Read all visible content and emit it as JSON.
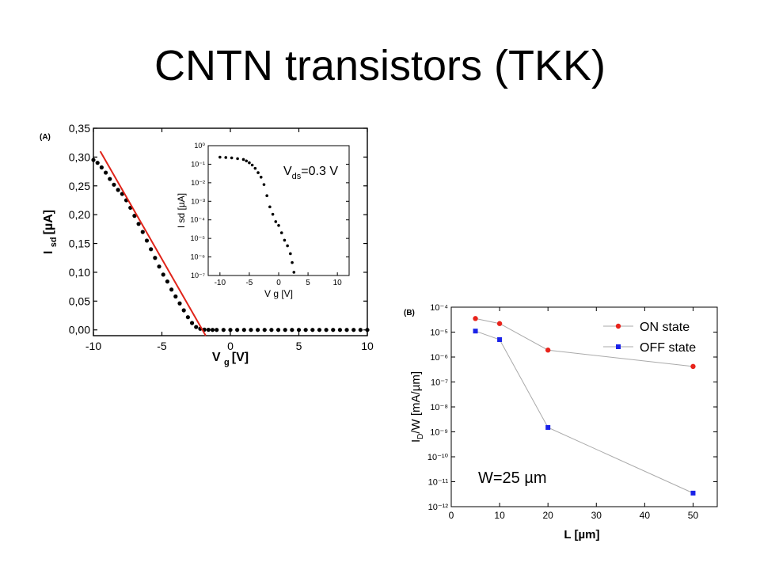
{
  "slide": {
    "title": "CNTN transistors (TKK)"
  },
  "chart_data": [
    {
      "type": "scatter",
      "panel_label": "(A)",
      "xlabel": "V g [V]",
      "xlabel_main": "V",
      "xlabel_sub": "g",
      "xlabel_unit": "[V]",
      "ylabel": "I sd [µA]",
      "ylabel_main": "I",
      "ylabel_sub": "sd",
      "ylabel_unit": "[µA]",
      "xlim": [
        -10,
        10
      ],
      "ylim": [
        -0.01,
        0.35
      ],
      "x_ticks": [
        "-10",
        "-5",
        "0",
        "5",
        "10"
      ],
      "y_ticks": [
        "0,00",
        "0,05",
        "0,10",
        "0,15",
        "0,20",
        "0,25",
        "0,30",
        "0,35"
      ],
      "grid": false,
      "series": [
        {
          "color": "#000000",
          "points": [
            [
              -10,
              0.295
            ],
            [
              -9.7,
              0.29
            ],
            [
              -9.4,
              0.282
            ],
            [
              -9.1,
              0.273
            ],
            [
              -8.8,
              0.262
            ],
            [
              -8.5,
              0.252
            ],
            [
              -8.2,
              0.243
            ],
            [
              -7.9,
              0.236
            ],
            [
              -7.6,
              0.225
            ],
            [
              -7.3,
              0.212
            ],
            [
              -7.0,
              0.198
            ],
            [
              -6.7,
              0.184
            ],
            [
              -6.4,
              0.17
            ],
            [
              -6.1,
              0.155
            ],
            [
              -5.8,
              0.14
            ],
            [
              -5.5,
              0.125
            ],
            [
              -5.2,
              0.11
            ],
            [
              -4.9,
              0.096
            ],
            [
              -4.6,
              0.084
            ],
            [
              -4.3,
              0.07
            ],
            [
              -4.0,
              0.058
            ],
            [
              -3.7,
              0.046
            ],
            [
              -3.4,
              0.034
            ],
            [
              -3.1,
              0.022
            ],
            [
              -2.8,
              0.012
            ],
            [
              -2.5,
              0.005
            ],
            [
              -2.2,
              0.002
            ],
            [
              -1.9,
              0.0005
            ],
            [
              -1.6,
              0.0002
            ],
            [
              -1.3,
              0.0
            ],
            [
              -1.0,
              0.0
            ],
            [
              -0.5,
              0.0
            ],
            [
              0,
              0.0
            ],
            [
              0.5,
              0.0
            ],
            [
              1,
              0.0
            ],
            [
              1.5,
              0.0
            ],
            [
              2,
              0.0
            ],
            [
              2.5,
              0.0
            ],
            [
              3,
              0.0
            ],
            [
              3.5,
              0.0
            ],
            [
              4,
              0.0
            ],
            [
              4.5,
              0.0
            ],
            [
              5,
              0.0
            ],
            [
              5.5,
              0.0
            ],
            [
              6,
              0.0
            ],
            [
              6.5,
              0.0
            ],
            [
              7,
              0.0
            ],
            [
              7.5,
              0.0
            ],
            [
              8,
              0.0
            ],
            [
              8.5,
              0.0
            ],
            [
              9,
              0.0
            ],
            [
              9.5,
              0.0
            ],
            [
              10,
              0.0
            ]
          ]
        }
      ],
      "fit_line": {
        "color": "#e0241a",
        "points": [
          [
            -9.5,
            0.31
          ],
          [
            -1.8,
            -0.01
          ]
        ]
      },
      "inset": {
        "type": "scatter",
        "y_scale": "log",
        "xlim": [
          -12,
          12
        ],
        "ylim_exponents": [
          -7,
          0
        ],
        "x_ticks": [
          "-10",
          "-5",
          "0",
          "5",
          "10"
        ],
        "y_ticks": [
          "10⁰",
          "10⁻¹",
          "10⁻²",
          "10⁻³",
          "10⁻⁴",
          "10⁻⁵",
          "10⁻⁶",
          "10⁻⁷"
        ],
        "xlabel": "V g [V]",
        "ylabel": "I sd [µA]",
        "annotation_main": "V",
        "annotation_sub": "ds",
        "annotation_rest": "=0.3 V",
        "points": [
          [
            -10,
            0.24
          ],
          [
            -9,
            0.23
          ],
          [
            -8,
            0.22
          ],
          [
            -7,
            0.2
          ],
          [
            -6,
            0.18
          ],
          [
            -5.5,
            0.15
          ],
          [
            -5,
            0.12
          ],
          [
            -4.5,
            0.09
          ],
          [
            -4,
            0.06
          ],
          [
            -3.5,
            0.035
          ],
          [
            -3,
            0.02
          ],
          [
            -2.5,
            0.008
          ],
          [
            -2,
            0.002
          ],
          [
            -1.5,
            0.0005
          ],
          [
            -1,
            0.0002
          ],
          [
            -0.5,
            8e-05
          ],
          [
            0,
            5e-05
          ],
          [
            0.5,
            2e-05
          ],
          [
            1,
            8e-06
          ],
          [
            1.5,
            4e-06
          ],
          [
            2,
            1.5e-06
          ],
          [
            2.3,
            5e-07
          ],
          [
            2.6,
            1.5e-07
          ]
        ]
      }
    },
    {
      "type": "line",
      "panel_label": "(B)",
      "xlabel": "L [µm]",
      "ylabel": "I D/W [mA/µm]",
      "ylabel_main": "I",
      "ylabel_sub": "D",
      "ylabel_rest": "/W [mA/µm]",
      "y_scale": "log",
      "xlim": [
        0,
        55
      ],
      "ylim_exponents": [
        -12,
        -4
      ],
      "x_ticks": [
        "0",
        "10",
        "20",
        "30",
        "40",
        "50"
      ],
      "y_ticks": [
        "10⁻⁴",
        "10⁻⁵",
        "10⁻⁶",
        "10⁻⁷",
        "10⁻⁸",
        "10⁻⁹",
        "10⁻¹⁰",
        "10⁻¹¹",
        "10⁻¹²"
      ],
      "grid": false,
      "legend_position": "top-right",
      "annotation": "W=25 µm",
      "series": [
        {
          "name": "ON state",
          "color": "#e8231b",
          "marker": "circle",
          "x": [
            5,
            10,
            20,
            50
          ],
          "values": [
            3.5e-05,
            2.2e-05,
            1.9e-06,
            4.2e-07
          ]
        },
        {
          "name": "OFF state",
          "color": "#1a22e8",
          "marker": "square",
          "x": [
            5,
            10,
            20,
            50
          ],
          "values": [
            1.1e-05,
            5e-06,
            1.5e-09,
            3.5e-12
          ]
        }
      ]
    }
  ]
}
